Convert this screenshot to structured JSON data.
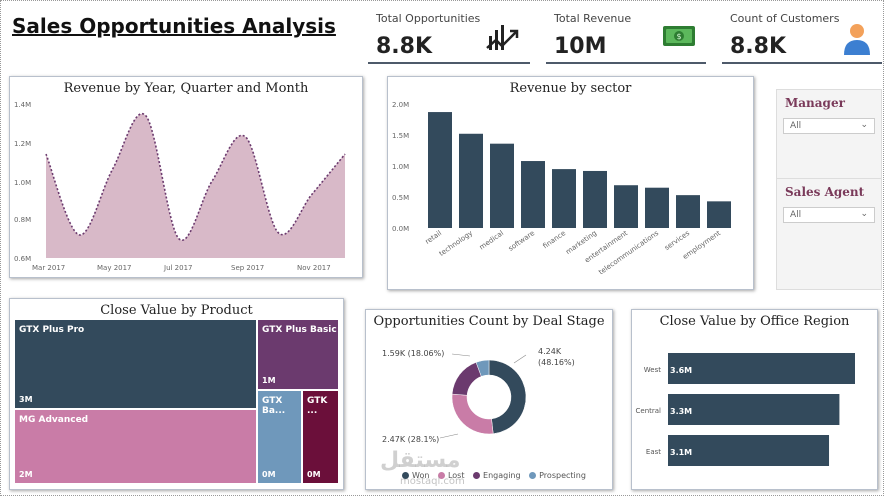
{
  "page": {
    "title": "Sales Opportunities Analysis"
  },
  "kpis": [
    {
      "label": "Total Opportunities",
      "value": "8.8K",
      "icon": "chart-trend-icon"
    },
    {
      "label": "Total Revenue",
      "value": "10M",
      "icon": "money-icon"
    },
    {
      "label": "Count of Customers",
      "value": "8.8K",
      "icon": "user-icon"
    }
  ],
  "slicers": [
    {
      "label": "Manager",
      "value": "All"
    },
    {
      "label": "Sales Agent",
      "value": "All"
    }
  ],
  "revenue_chart": {
    "title": "Revenue by Year, Quarter and Month",
    "y_ticks": [
      "1.4M",
      "1.2M",
      "1.0M",
      "0.8M",
      "0.6M"
    ],
    "x_ticks": [
      "Mar 2017",
      "May 2017",
      "Jul 2017",
      "Sep 2017",
      "Nov 2017"
    ]
  },
  "sector_chart": {
    "title": "Revenue by sector",
    "y_ticks": [
      "2.0M",
      "1.5M",
      "1.0M",
      "0.5M",
      "0.0M"
    ]
  },
  "product_chart": {
    "title": "Close Value by Product",
    "tiles": [
      {
        "name": "GTX Plus Pro",
        "value": "3M",
        "color": "#334a5c"
      },
      {
        "name": "MG Advanced",
        "value": "2M",
        "color": "#c97ca7"
      },
      {
        "name": "GTX Plus Basic",
        "value": "1M",
        "color": "#6b3a6e"
      },
      {
        "name": "GTX Ba...",
        "value": "0M",
        "color": "#6f98bb"
      },
      {
        "name": "GTK ...",
        "value": "0M",
        "color": "#6b0f3a"
      }
    ]
  },
  "stage_chart": {
    "title": "Opportunities Count by Deal Stage",
    "labels": [
      "4.24K",
      "(48.16%)",
      "1.59K (18.06%)",
      "2.47K (28.1%)"
    ],
    "legend": [
      "Won",
      "Lost",
      "Engaging",
      "Prospecting"
    ]
  },
  "region_chart": {
    "title": "Close Value by Office Region",
    "bar_labels": [
      "3.6M",
      "3.3M",
      "3.1M"
    ]
  },
  "watermark": {
    "text": "مستقل",
    "sub": "mostaql.com"
  },
  "colors": {
    "dark": "#334a5c",
    "pink": "#c97ca7",
    "purple": "#6b3a6e",
    "blue": "#6f98bb",
    "maroon": "#6b0f3a",
    "area": "#d8b9c8"
  },
  "chart_data": [
    {
      "type": "area",
      "title": "Revenue by Year, Quarter and Month",
      "x": [
        "Mar 2017",
        "Apr 2017",
        "May 2017",
        "Jun 2017",
        "Jul 2017",
        "Aug 2017",
        "Sep 2017",
        "Oct 2017",
        "Nov 2017",
        "Dec 2017"
      ],
      "values": [
        1140000,
        720000,
        1060000,
        1340000,
        700000,
        1000000,
        1230000,
        730000,
        930000,
        1140000
      ],
      "ylim": [
        600000,
        1400000
      ],
      "color": "#d8b9c8"
    },
    {
      "type": "bar",
      "title": "Revenue by sector",
      "categories": [
        "retail",
        "technology",
        "medical",
        "software",
        "finance",
        "marketing",
        "entertainment",
        "telecommunications",
        "services",
        "employment"
      ],
      "values": [
        1870000,
        1520000,
        1360000,
        1080000,
        950000,
        920000,
        690000,
        650000,
        530000,
        430000
      ],
      "ylim": [
        0,
        2000000
      ],
      "color": "#334a5c"
    },
    {
      "type": "pie",
      "title": "Opportunities Count by Deal Stage",
      "categories": [
        "Won",
        "Lost",
        "Engaging",
        "Prospecting"
      ],
      "values": [
        4240,
        2470,
        1590,
        500
      ],
      "colors": [
        "#334a5c",
        "#c97ca7",
        "#6b3a6e",
        "#6f98bb"
      ]
    },
    {
      "type": "bar",
      "title": "Close Value by Office Region",
      "categories": [
        "West",
        "Central",
        "East"
      ],
      "values": [
        3600000,
        3300000,
        3100000
      ],
      "color": "#334a5c"
    }
  ]
}
